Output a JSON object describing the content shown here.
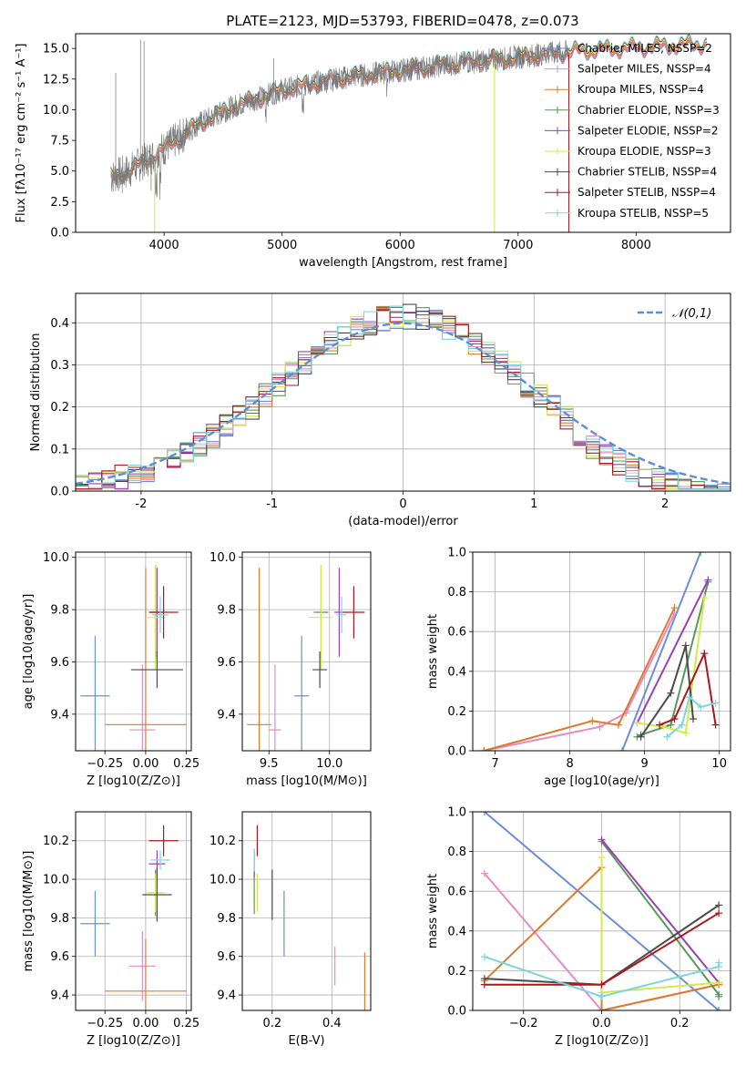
{
  "colors": {
    "s1": "#6a8fd8",
    "s2": "#e98ac0",
    "s3": "#dd7a2e",
    "s4": "#56995a",
    "s5": "#9b3fb3",
    "s6": "#d4ea4a",
    "s7": "#4a4a4a",
    "s8": "#b0151c",
    "s9": "#7ed4dc",
    "gaussian": "#5b8ed6",
    "spectrum": "#777777"
  },
  "chart_data": [
    {
      "type": "line",
      "title": "PLATE=2123, MJD=53793, FIBERID=0478, z=0.073",
      "xlabel": "wavelength [Angstrom, rest frame]",
      "ylabel": "Flux [fλ10⁻¹⁷ erg cm⁻² s⁻¹ A⁻¹]",
      "xlim": [
        3250,
        8800
      ],
      "ylim": [
        0,
        16.2
      ],
      "xticks": [
        4000,
        5000,
        6000,
        7000,
        8000
      ],
      "yticks": [
        0.0,
        2.5,
        5.0,
        7.5,
        10.0,
        12.5,
        15.0
      ],
      "legend_position": "top-right",
      "legend": [
        "Chabrier MILES, NSSP=2",
        "Salpeter MILES, NSSP=4",
        "Kroupa MILES, NSSP=4",
        "Chabrier ELODIE, NSSP=3",
        "Salpeter ELODIE, NSSP=2",
        "Kroupa ELODIE, NSSP=3",
        "Chabrier STELIB, NSSP=4",
        "Salpeter STELIB, NSSP=4",
        "Kroupa STELIB, NSSP=5"
      ],
      "continuum": {
        "x": [
          3550,
          3700,
          3900,
          4100,
          4300,
          4600,
          5000,
          5500,
          6000,
          6500,
          7000,
          7500,
          8000,
          8600
        ],
        "y": [
          4.5,
          5.0,
          6.2,
          7.5,
          8.9,
          10.3,
          11.6,
          12.6,
          13.2,
          13.8,
          14.3,
          14.8,
          15.1,
          15.4
        ]
      }
    },
    {
      "type": "step",
      "xlabel": "(data-model)/error",
      "ylabel": "Normed distribution",
      "xlim": [
        -2.5,
        2.5
      ],
      "ylim": [
        0,
        0.47
      ],
      "xticks": [
        -2,
        -1,
        0,
        1,
        2
      ],
      "yticks": [
        0.0,
        0.1,
        0.2,
        0.3,
        0.4
      ],
      "legend": [
        "𝒩(0,1)"
      ],
      "legend_position": "top-right",
      "gaussian": {
        "mu": 0,
        "sigma": 1
      }
    },
    {
      "type": "errorbar",
      "xlabel": "Z [log10(Z/Z⊙)]",
      "ylabel": "age [log10(age/yr)]",
      "xlim": [
        -0.43,
        0.28
      ],
      "ylim": [
        9.26,
        10.02
      ],
      "xticks": [
        -0.25,
        0.0,
        0.25
      ],
      "xticklabels": [
        "−0.25",
        "0.00",
        "0.25"
      ],
      "yticks": [
        9.4,
        9.6,
        9.8,
        10.0
      ],
      "points": [
        {
          "x": -0.31,
          "y": 9.47,
          "xerr": 0.09,
          "yerr": 0.23
        },
        {
          "x": -0.02,
          "y": 9.34,
          "xerr": 0.08,
          "yerr": 0.25
        },
        {
          "x": 0.0,
          "y": 9.36,
          "xerr": 0.25,
          "yerr": 0.6
        },
        {
          "x": 0.06,
          "y": 9.79,
          "xerr": 0.04,
          "yerr": 0.18
        },
        {
          "x": 0.07,
          "y": 9.79,
          "xerr": 0.04,
          "yerr": 0.17
        },
        {
          "x": 0.06,
          "y": 9.77,
          "xerr": 0.06,
          "yerr": 0.2
        },
        {
          "x": 0.07,
          "y": 9.57,
          "xerr": 0.16,
          "yerr": 0.07
        },
        {
          "x": 0.11,
          "y": 9.79,
          "xerr": 0.09,
          "yerr": 0.1
        },
        {
          "x": 0.09,
          "y": 9.78,
          "xerr": 0.05,
          "yerr": 0.07
        }
      ]
    },
    {
      "type": "errorbar",
      "xlabel": "mass [log10(M/M⊙)]",
      "xlim": [
        9.28,
        10.34
      ],
      "ylim": [
        9.26,
        10.02
      ],
      "xticks": [
        9.5,
        10.0
      ],
      "xticklabels": [
        "9.5",
        "10.0"
      ],
      "yticks": [
        9.4,
        9.6,
        9.8,
        10.0
      ],
      "points": [
        {
          "x": 9.77,
          "y": 9.47,
          "xerr": 0.06,
          "yerr": 0.23
        },
        {
          "x": 9.55,
          "y": 9.34,
          "xerr": 0.05,
          "yerr": 0.25
        },
        {
          "x": 9.42,
          "y": 9.36,
          "xerr": 0.1,
          "yerr": 0.6
        },
        {
          "x": 9.93,
          "y": 9.79,
          "xerr": 0.06,
          "yerr": 0.18
        },
        {
          "x": 10.08,
          "y": 9.79,
          "xerr": 0.04,
          "yerr": 0.17
        },
        {
          "x": 9.93,
          "y": 9.77,
          "xerr": 0.1,
          "yerr": 0.2
        },
        {
          "x": 9.92,
          "y": 9.57,
          "xerr": 0.06,
          "yerr": 0.07
        },
        {
          "x": 10.2,
          "y": 9.79,
          "xerr": 0.09,
          "yerr": 0.1
        },
        {
          "x": 10.1,
          "y": 9.78,
          "xerr": 0.04,
          "yerr": 0.07
        }
      ]
    },
    {
      "type": "line",
      "xlabel": "age [log10(age/yr)]",
      "ylabel": "mass weight",
      "xlim": [
        6.7,
        10.15
      ],
      "ylim": [
        0,
        1
      ],
      "xticks": [
        7,
        8,
        9,
        10
      ],
      "yticks": [
        0.0,
        0.2,
        0.4,
        0.6,
        0.8,
        1.0
      ],
      "series": [
        {
          "x": [
            8.7,
            9.75
          ],
          "y": [
            0.0,
            1.0
          ]
        },
        {
          "x": [
            6.85,
            8.4,
            8.75,
            9.4
          ],
          "y": [
            0.0,
            0.12,
            0.19,
            0.69
          ]
        },
        {
          "x": [
            6.85,
            8.3,
            8.65,
            9.4
          ],
          "y": [
            0.0,
            0.15,
            0.13,
            0.72
          ]
        },
        {
          "x": [
            8.9,
            8.95,
            9.35,
            9.85
          ],
          "y": [
            0.07,
            0.08,
            0.13,
            0.85
          ]
        },
        {
          "x": [
            8.9,
            9.85
          ],
          "y": [
            0.14,
            0.86
          ]
        },
        {
          "x": [
            8.9,
            9.25,
            9.55,
            9.8
          ],
          "y": [
            0.14,
            0.12,
            0.09,
            0.77
          ]
        },
        {
          "x": [
            8.95,
            9.35,
            9.55,
            9.65
          ],
          "y": [
            0.07,
            0.29,
            0.53,
            0.16
          ]
        },
        {
          "x": [
            9.2,
            9.4,
            9.8,
            9.95
          ],
          "y": [
            0.13,
            0.16,
            0.49,
            0.13
          ]
        },
        {
          "x": [
            9.3,
            9.5,
            9.6,
            9.75,
            9.95
          ],
          "y": [
            0.07,
            0.13,
            0.27,
            0.22,
            0.24
          ]
        }
      ]
    },
    {
      "type": "errorbar",
      "xlabel": "Z [log10(Z/Z⊙)]",
      "ylabel": "mass [log10(M/M⊙)]",
      "xlim": [
        -0.43,
        0.28
      ],
      "ylim": [
        9.32,
        10.35
      ],
      "xticks": [
        -0.25,
        0.0,
        0.25
      ],
      "xticklabels": [
        "−0.25",
        "0.00",
        "0.25"
      ],
      "yticks": [
        9.4,
        9.6,
        9.8,
        10.0,
        10.2
      ],
      "points": [
        {
          "x": -0.31,
          "y": 9.77,
          "xerr": 0.09,
          "yerr": 0.17
        },
        {
          "x": -0.02,
          "y": 9.55,
          "xerr": 0.08,
          "yerr": 0.18
        },
        {
          "x": 0.0,
          "y": 9.42,
          "xerr": 0.25,
          "yerr": 0.27
        },
        {
          "x": 0.06,
          "y": 9.93,
          "xerr": 0.04,
          "yerr": 0.12
        },
        {
          "x": 0.07,
          "y": 10.08,
          "xerr": 0.05,
          "yerr": 0.07
        },
        {
          "x": 0.06,
          "y": 9.93,
          "xerr": 0.06,
          "yerr": 0.1
        },
        {
          "x": 0.07,
          "y": 9.92,
          "xerr": 0.09,
          "yerr": 0.14
        },
        {
          "x": 0.11,
          "y": 10.2,
          "xerr": 0.09,
          "yerr": 0.08
        },
        {
          "x": 0.09,
          "y": 10.1,
          "xerr": 0.06,
          "yerr": 0.05
        }
      ]
    },
    {
      "type": "errorbar",
      "xlabel": "E(B-V)",
      "xlim": [
        0.1,
        0.53
      ],
      "ylim": [
        9.32,
        10.35
      ],
      "xticks": [
        0.2,
        0.4
      ],
      "xticklabels": [
        "0.2",
        "0.4"
      ],
      "yticks": [
        9.4,
        9.6,
        9.8,
        10.0,
        10.2
      ],
      "points": [
        {
          "x": 0.24,
          "y": 9.77,
          "xerr": 0.0,
          "yerr": 0.17
        },
        {
          "x": 0.41,
          "y": 9.55,
          "xerr": 0.0,
          "yerr": 0.1
        },
        {
          "x": 0.51,
          "y": 9.42,
          "xerr": 0.0,
          "yerr": 0.2
        },
        {
          "x": 0.14,
          "y": 9.93,
          "xerr": 0.0,
          "yerr": 0.11
        },
        {
          "x": 0.14,
          "y": 10.08,
          "xerr": 0.0,
          "yerr": 0.07
        },
        {
          "x": 0.15,
          "y": 9.93,
          "xerr": 0.0,
          "yerr": 0.1
        },
        {
          "x": 0.2,
          "y": 9.92,
          "xerr": 0.0,
          "yerr": 0.13
        },
        {
          "x": 0.15,
          "y": 10.2,
          "xerr": 0.0,
          "yerr": 0.08
        },
        {
          "x": 0.14,
          "y": 10.1,
          "xerr": 0.0,
          "yerr": 0.06
        }
      ]
    },
    {
      "type": "line",
      "xlabel": "Z [log10(Z/Z⊙)]",
      "ylabel": "mass weight",
      "xlim": [
        -0.33,
        0.33
      ],
      "ylim": [
        0,
        1
      ],
      "xticks": [
        -0.2,
        0.0,
        0.2
      ],
      "xticklabels": [
        "−0.2",
        "0.0",
        "0.2"
      ],
      "yticks": [
        0.0,
        0.2,
        0.4,
        0.6,
        0.8,
        1.0
      ],
      "series": [
        {
          "x": [
            -0.3,
            0.3
          ],
          "y": [
            1.0,
            0.0
          ]
        },
        {
          "x": [
            -0.3,
            0.0,
            0.3
          ],
          "y": [
            0.69,
            0.0,
            0.13
          ]
        },
        {
          "x": [
            -0.3,
            0.0,
            0.0,
            0.3
          ],
          "y": [
            0.15,
            0.72,
            0.0,
            0.13
          ]
        },
        {
          "x": [
            0.0,
            0.3,
            0.3
          ],
          "y": [
            0.85,
            0.08,
            0.07
          ]
        },
        {
          "x": [
            0.0,
            0.3
          ],
          "y": [
            0.86,
            0.14
          ]
        },
        {
          "x": [
            0.0,
            0.0,
            0.3
          ],
          "y": [
            0.77,
            0.09,
            0.14
          ]
        },
        {
          "x": [
            -0.3,
            0.0,
            0.3
          ],
          "y": [
            0.16,
            0.13,
            0.53
          ]
        },
        {
          "x": [
            -0.3,
            0.0,
            0.3
          ],
          "y": [
            0.13,
            0.13,
            0.49
          ]
        },
        {
          "x": [
            -0.3,
            0.0,
            0.3,
            0.3
          ],
          "y": [
            0.27,
            0.07,
            0.22,
            0.24
          ]
        }
      ]
    }
  ]
}
